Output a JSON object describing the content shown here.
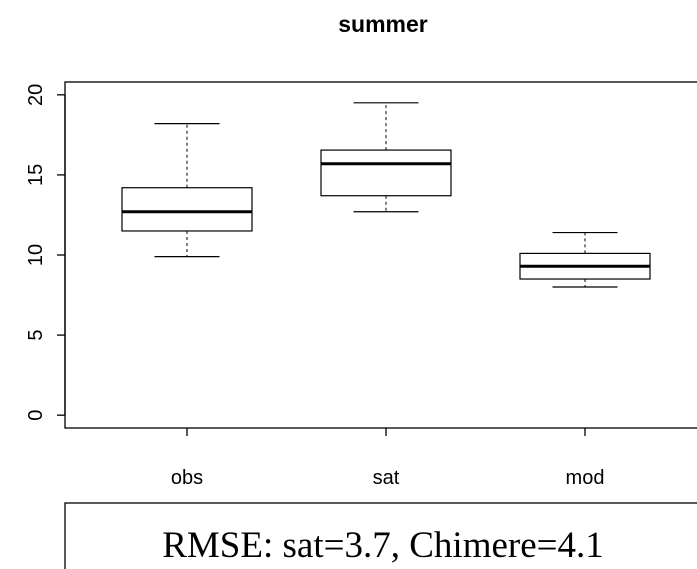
{
  "chart_data": {
    "type": "box",
    "title": "summer",
    "categories": [
      "obs",
      "sat",
      "mod"
    ],
    "boxes": [
      {
        "whisker_low": 9.9,
        "q1": 11.5,
        "median": 12.7,
        "q3": 14.2,
        "whisker_high": 18.2
      },
      {
        "whisker_low": 12.7,
        "q1": 13.7,
        "median": 15.7,
        "q3": 16.55,
        "whisker_high": 19.5
      },
      {
        "whisker_low": 8.0,
        "q1": 8.5,
        "median": 9.3,
        "q3": 10.1,
        "whisker_high": 11.4
      }
    ],
    "color": "#000000",
    "ylim": [
      -0.8,
      20.8
    ],
    "yticks": [
      0,
      5,
      10,
      15,
      20
    ],
    "annotation": "RMSE: sat=3.7, Chimere=4.1"
  }
}
